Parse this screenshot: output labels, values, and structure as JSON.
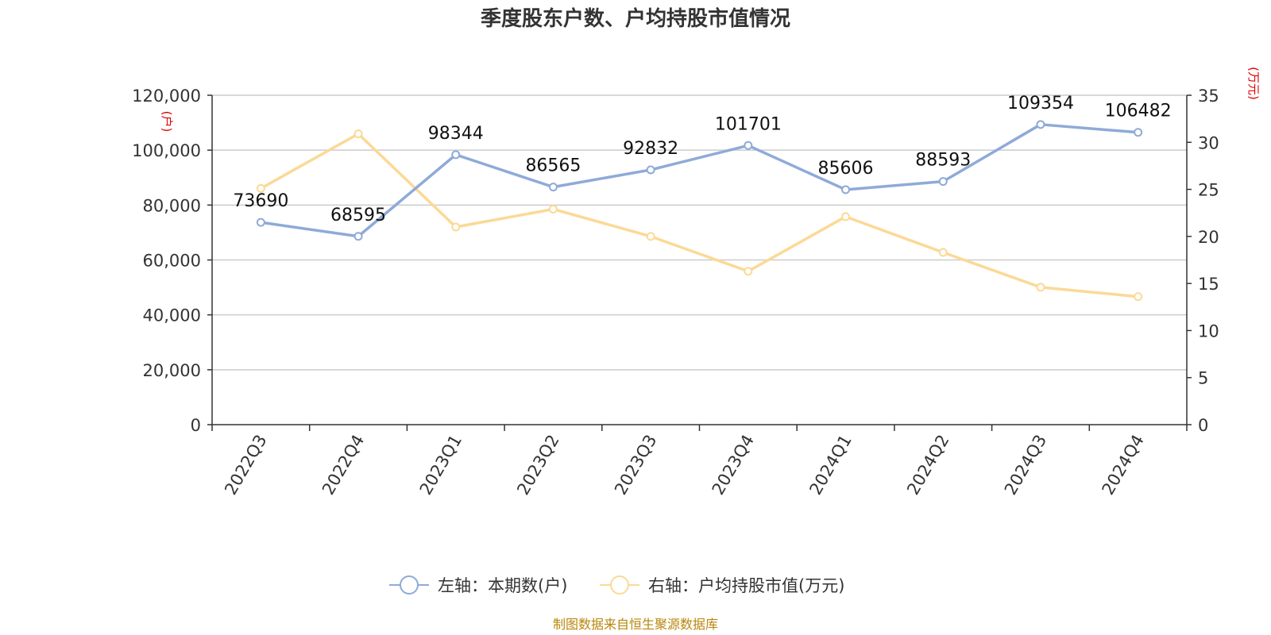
{
  "title": "季度股东户数、户均持股市值情况",
  "source": "制图数据来自恒生聚源数据库",
  "colors": {
    "left_series": "#8eaad8",
    "right_series": "#fbd996",
    "unit": "#e00000",
    "source": "#b8860b",
    "grid": "#cccccc",
    "axis": "#333333"
  },
  "chart_data": {
    "type": "line",
    "title": "季度股东户数、户均持股市值情况",
    "categories": [
      "2022Q3",
      "2022Q4",
      "2023Q1",
      "2023Q2",
      "2023Q3",
      "2023Q4",
      "2024Q1",
      "2024Q2",
      "2024Q3",
      "2024Q4"
    ],
    "y_left": {
      "unit": "(户)",
      "min": 0,
      "max": 120000,
      "ticks": [
        "0",
        "20,000",
        "40,000",
        "60,000",
        "80,000",
        "100,000",
        "120,000"
      ]
    },
    "y_right": {
      "unit": "(万元)",
      "min": 0,
      "max": 35,
      "ticks": [
        "0",
        "5",
        "10",
        "15",
        "20",
        "25",
        "30",
        "35"
      ]
    },
    "grid": true,
    "legend_position": "bottom",
    "series": [
      {
        "name": "左轴：本期数(户)",
        "axis": "left",
        "values": [
          73690,
          68595,
          98344,
          86565,
          92832,
          101701,
          85606,
          88593,
          109354,
          106482
        ],
        "labels": [
          "73690",
          "68595",
          "98344",
          "86565",
          "92832",
          "101701",
          "85606",
          "88593",
          "109354",
          "106482"
        ]
      },
      {
        "name": "右轴：户均持股市值(万元)",
        "axis": "right",
        "values": [
          25.1,
          30.9,
          21.0,
          22.9,
          20.0,
          16.3,
          22.1,
          18.3,
          14.6,
          13.6
        ]
      }
    ]
  }
}
